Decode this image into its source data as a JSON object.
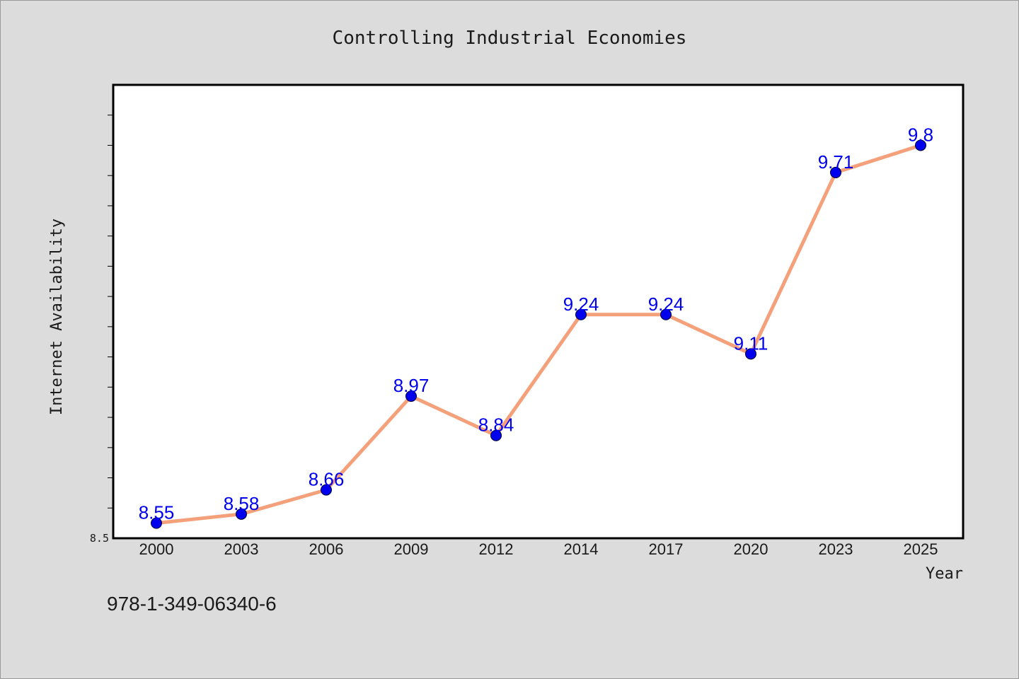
{
  "chart_data": {
    "type": "line",
    "title": "Controlling Industrial Economies",
    "xlabel": "Year",
    "ylabel": "Internet Availability",
    "categories": [
      "2000",
      "2003",
      "2006",
      "2009",
      "2012",
      "2014",
      "2017",
      "2020",
      "2023",
      "2025"
    ],
    "series": [
      {
        "values": [
          8.55,
          8.58,
          8.66,
          8.97,
          8.84,
          9.24,
          9.24,
          9.11,
          9.71,
          9.8
        ]
      }
    ],
    "data_labels": [
      "8.55",
      "8.58",
      "8.66",
      "8.97",
      "8.84",
      "9.24",
      "9.24",
      "9.11",
      "9.71",
      "9.8"
    ],
    "ylim": [
      8.5,
      10.0
    ],
    "yticks_labeled": [
      "8.5"
    ],
    "line_color": "#f4a07a",
    "marker_color": "#0000ee",
    "label_color": "#0000ee",
    "grid": false
  },
  "footnote": "978-1-349-06340-6"
}
